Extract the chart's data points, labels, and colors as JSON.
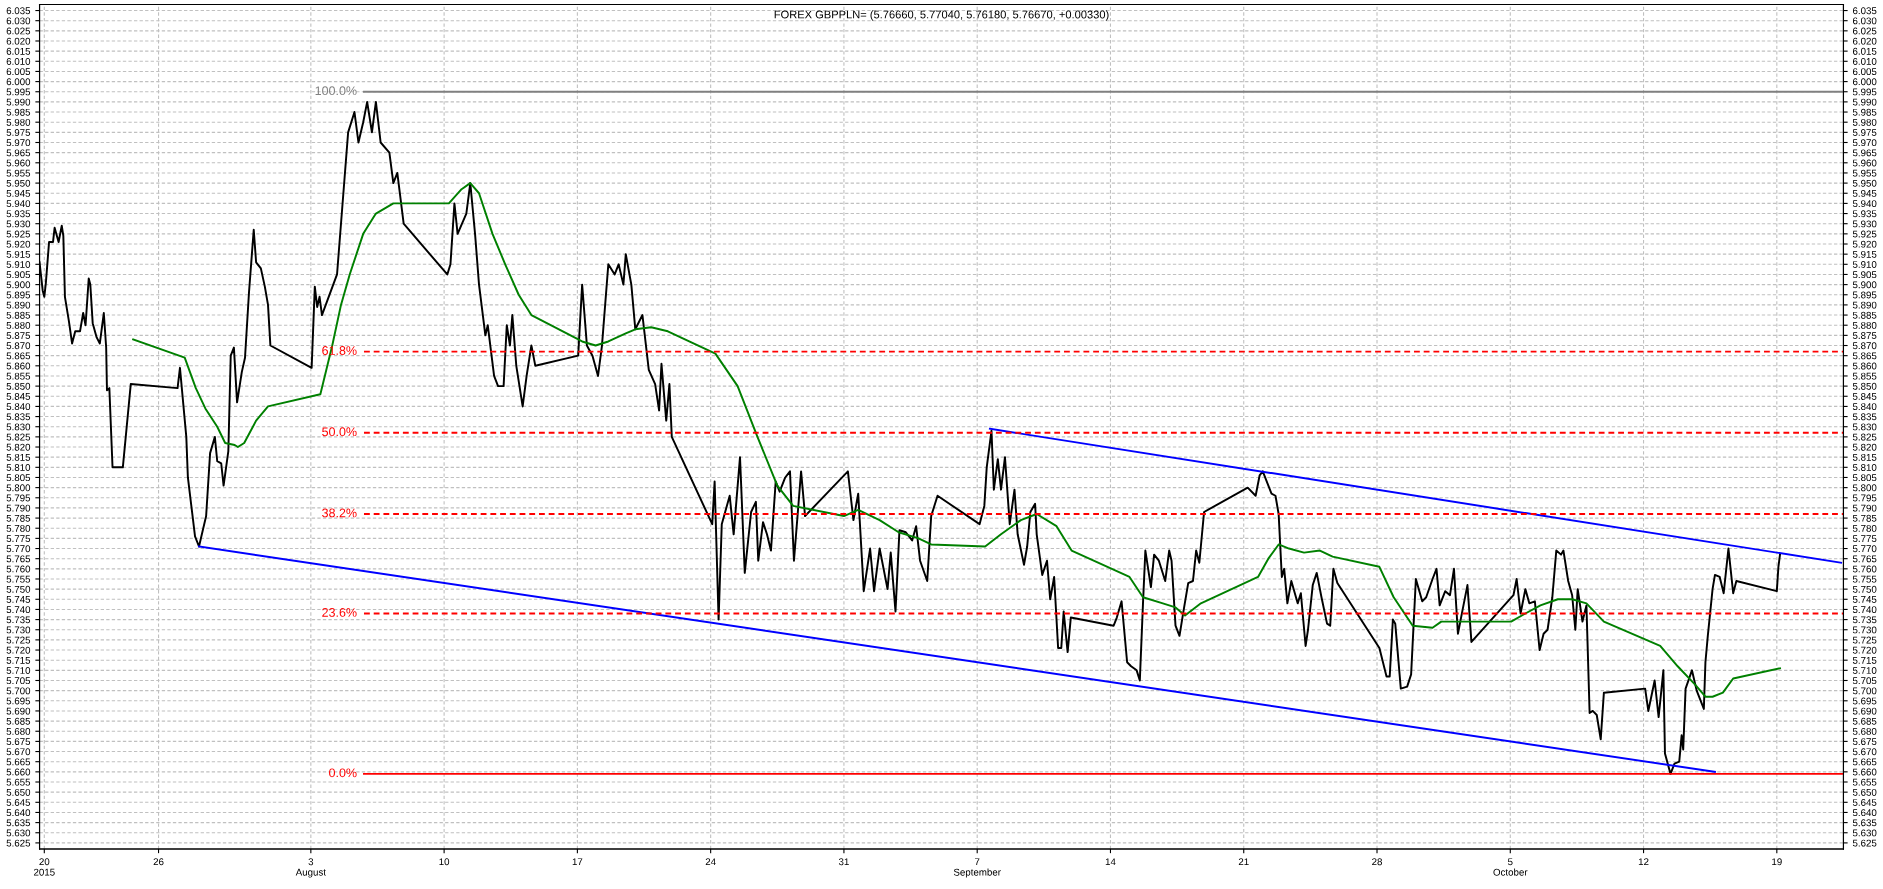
{
  "chart_data": {
    "type": "line",
    "title": "FOREX GBPPLN= (5.76660, 5.77040, 5.76180, 5.76670, +0.00330)",
    "xlim": [
      "2015-07-19T18:00",
      "2015-10-22T12:00"
    ],
    "ylim": [
      5.622,
      6.038
    ],
    "y2lim": [
      5.622,
      6.038
    ],
    "grid": true,
    "line_style": "solid",
    "marker": "none",
    "xticks": [
      {
        "value": "2015-07-20",
        "label": "20\n2015"
      },
      {
        "value": "2015-07-26",
        "label": "26"
      },
      {
        "value": "2015-08-03",
        "label": "3\nAugust"
      },
      {
        "value": "2015-08-10",
        "label": "10"
      },
      {
        "value": "2015-08-17",
        "label": "17"
      },
      {
        "value": "2015-08-24",
        "label": "24"
      },
      {
        "value": "2015-08-31",
        "label": "31"
      },
      {
        "value": "2015-09-07",
        "label": "7\nSeptember"
      },
      {
        "value": "2015-09-14",
        "label": "14"
      },
      {
        "value": "2015-09-21",
        "label": "21"
      },
      {
        "value": "2015-09-28",
        "label": "28"
      },
      {
        "value": "2015-10-05",
        "label": "5\nOctober"
      },
      {
        "value": "2015-10-12",
        "label": "12"
      },
      {
        "value": "2015-10-19",
        "label": "19"
      }
    ],
    "yticks": [
      5.625,
      {
        "value": 5.63,
        "label": "5.630"
      },
      5.635,
      {
        "value": 5.64,
        "label": "5.640"
      },
      5.645,
      {
        "value": 5.65,
        "label": "5.650"
      },
      5.655,
      {
        "value": 5.66,
        "label": "5.660"
      },
      5.665,
      {
        "value": 5.67,
        "label": "5.670"
      },
      5.675,
      {
        "value": 5.68,
        "label": "5.680"
      },
      5.685,
      {
        "value": 5.69,
        "label": "5.690"
      },
      5.695,
      {
        "value": 5.7,
        "label": "5.700"
      },
      5.705,
      {
        "value": 5.71,
        "label": "5.710"
      },
      5.715,
      {
        "value": 5.72,
        "label": "5.720"
      },
      5.725,
      {
        "value": 5.73,
        "label": "5.730"
      },
      5.735,
      {
        "value": 5.74,
        "label": "5.740"
      },
      5.745,
      {
        "value": 5.75,
        "label": "5.750"
      },
      5.755,
      {
        "value": 5.76,
        "label": "5.760"
      },
      5.765,
      {
        "value": 5.77,
        "label": "5.770"
      },
      5.775,
      {
        "value": 5.78,
        "label": "5.780"
      },
      5.785,
      {
        "value": 5.79,
        "label": "5.790"
      },
      5.795,
      {
        "value": 5.8,
        "label": "5.800"
      },
      5.805,
      {
        "value": 5.81,
        "label": "5.810"
      },
      5.815,
      {
        "value": 5.82,
        "label": "5.820"
      },
      5.825,
      {
        "value": 5.83,
        "label": "5.830"
      },
      5.835,
      {
        "value": 5.84,
        "label": "5.840"
      },
      5.845,
      {
        "value": 5.85,
        "label": "5.850"
      },
      5.855,
      {
        "value": 5.86,
        "label": "5.860"
      },
      5.865,
      {
        "value": 5.87,
        "label": "5.870"
      },
      5.875,
      {
        "value": 5.88,
        "label": "5.880"
      },
      5.885,
      {
        "value": 5.89,
        "label": "5.890"
      },
      5.895,
      {
        "value": 5.9,
        "label": "5.900"
      },
      5.905,
      {
        "value": 5.91,
        "label": "5.910"
      },
      5.915,
      {
        "value": 5.92,
        "label": "5.920"
      },
      5.925,
      {
        "value": 5.93,
        "label": "5.930"
      },
      5.935,
      {
        "value": 5.94,
        "label": "5.940"
      },
      5.945,
      {
        "value": 5.95,
        "label": "5.950"
      },
      5.955,
      {
        "value": 5.96,
        "label": "5.960"
      },
      5.965,
      {
        "value": 5.97,
        "label": "5.970"
      },
      5.975,
      {
        "value": 5.98,
        "label": "5.980"
      },
      5.985,
      {
        "value": 5.99,
        "label": "5.990"
      },
      5.995,
      {
        "value": 6.0,
        "label": "6.000"
      },
      6.005,
      {
        "value": 6.01,
        "label": "6.010"
      },
      6.015,
      {
        "value": 6.02,
        "label": "6.020"
      },
      6.025,
      {
        "value": 6.03,
        "label": "6.030"
      },
      6.035
    ],
    "y2ticks": [
      5.625,
      {
        "value": 5.63,
        "label": "5.630"
      },
      5.635,
      {
        "value": 5.64,
        "label": "5.640"
      },
      5.645,
      {
        "value": 5.65,
        "label": "5.650"
      },
      5.655,
      {
        "value": 5.66,
        "label": "5.660"
      },
      5.665,
      {
        "value": 5.67,
        "label": "5.670"
      },
      5.675,
      {
        "value": 5.68,
        "label": "5.680"
      },
      5.685,
      {
        "value": 5.69,
        "label": "5.690"
      },
      5.695,
      {
        "value": 5.7,
        "label": "5.700"
      },
      5.705,
      {
        "value": 5.71,
        "label": "5.710"
      },
      5.715,
      {
        "value": 5.72,
        "label": "5.720"
      },
      5.725,
      {
        "value": 5.73,
        "label": "5.730"
      },
      5.735,
      {
        "value": 5.74,
        "label": "5.740"
      },
      5.745,
      {
        "value": 5.75,
        "label": "5.750"
      },
      5.755,
      {
        "value": 5.76,
        "label": "5.760"
      },
      5.765,
      {
        "value": 5.77,
        "label": "5.770"
      },
      5.775,
      {
        "value": 5.78,
        "label": "5.780"
      },
      5.785,
      {
        "value": 5.79,
        "label": "5.790"
      },
      5.795,
      {
        "value": 5.8,
        "label": "5.800"
      },
      5.805,
      {
        "value": 5.81,
        "label": "5.810"
      },
      5.815,
      {
        "value": 5.82,
        "label": "5.820"
      },
      5.825,
      {
        "value": 5.83,
        "label": "5.830"
      },
      5.835,
      {
        "value": 5.84,
        "label": "5.840"
      },
      5.845,
      {
        "value": 5.85,
        "label": "5.850"
      },
      5.855,
      {
        "value": 5.86,
        "label": "5.860"
      },
      5.865,
      {
        "value": 5.87,
        "label": "5.870"
      },
      5.875,
      {
        "value": 5.88,
        "label": "5.880"
      },
      5.885,
      {
        "value": 5.89,
        "label": "5.890"
      },
      5.895,
      {
        "value": 5.9,
        "label": "5.900"
      },
      5.905,
      {
        "value": 5.91,
        "label": "5.910"
      },
      5.915,
      {
        "value": 5.92,
        "label": "5.920"
      },
      5.925,
      {
        "value": 5.93,
        "label": "5.930"
      },
      5.935,
      {
        "value": 5.94,
        "label": "5.940"
      },
      5.945,
      {
        "value": 5.95,
        "label": "5.950"
      },
      5.955,
      {
        "value": 5.96,
        "label": "5.960"
      },
      5.965,
      {
        "value": 5.97,
        "label": "5.970"
      },
      5.975,
      {
        "value": 5.98,
        "label": "5.980"
      },
      5.985,
      {
        "value": 5.99,
        "label": "5.990"
      },
      5.995,
      {
        "value": 6.0,
        "label": "6.000"
      },
      6.005,
      {
        "value": 6.01,
        "label": "6.010"
      },
      6.015,
      {
        "value": 6.02,
        "label": "6.020"
      },
      6.025,
      {
        "value": 6.03,
        "label": "6.030"
      },
      6.035
    ],
    "series": [
      {
        "color": "#000000",
        "x": [
          "2015-07-19T18:00",
          "2015-07-19T22:00",
          "2015-07-20T00:00",
          "2015-07-20T02:00",
          "2015-07-20T06:00",
          "2015-07-20T11:00",
          "2015-07-20T13:00",
          "2015-07-20T18:00",
          "2015-07-20T22:00",
          "2015-07-21T00:00",
          "2015-07-21T02:00",
          "2015-07-21T07:00",
          "2015-07-21T11:00",
          "2015-07-21T15:00",
          "2015-07-21T21:00",
          "2015-07-22T01:00",
          "2015-07-22T04:00",
          "2015-07-22T08:00",
          "2015-07-22T10:00",
          "2015-07-22T13:00",
          "2015-07-22T18:00",
          "2015-07-22T22:00",
          "2015-07-23T03:00",
          "2015-07-23T06:00",
          "2015-07-23T07:00",
          "2015-07-23T10:00",
          "2015-07-23T14:00",
          "2015-07-24T03:00",
          "2015-07-24T13:00",
          "2015-07-27T00:00",
          "2015-07-27T03:00",
          "2015-07-27T11:00",
          "2015-07-27T13:00",
          "2015-07-27T22:00",
          "2015-07-28T03:00",
          "2015-07-28T12:00",
          "2015-07-28T17:00",
          "2015-07-28T23:00",
          "2015-07-29T02:00",
          "2015-07-29T07:00",
          "2015-07-29T10:00",
          "2015-07-29T16:00",
          "2015-07-29T19:00",
          "2015-07-29T23:00",
          "2015-07-30T03:00",
          "2015-07-30T09:00",
          "2015-07-30T13:00",
          "2015-07-30T18:00",
          "2015-07-31T00:00",
          "2015-07-31T03:00",
          "2015-07-31T09:00",
          "2015-07-31T14:00",
          "2015-07-31T18:00",
          "2015-07-31T21:00",
          "2015-08-03T01:00",
          "2015-08-03T05:00",
          "2015-08-03T08:00",
          "2015-08-03T11:00",
          "2015-08-03T14:00",
          "2015-08-04T09:00",
          "2015-08-04T14:00",
          "2015-08-04T23:00",
          "2015-08-05T07:00",
          "2015-08-05T12:00",
          "2015-08-05T18:00",
          "2015-08-05T23:00",
          "2015-08-06T05:00",
          "2015-08-06T10:00",
          "2015-08-06T16:00",
          "2015-08-07T03:00",
          "2015-08-07T08:00",
          "2015-08-07T13:00",
          "2015-08-07T21:00",
          "2015-08-10T04:00",
          "2015-08-10T08:00",
          "2015-08-10T13:00",
          "2015-08-10T17:00",
          "2015-08-11T04:00",
          "2015-08-11T09:00",
          "2015-08-11T15:00",
          "2015-08-11T20:00",
          "2015-08-12T04:00",
          "2015-08-12T07:00",
          "2015-08-12T15:00",
          "2015-08-12T20:00",
          "2015-08-13T03:00",
          "2015-08-13T07:00",
          "2015-08-13T11:00",
          "2015-08-13T14:00",
          "2015-08-13T19:00",
          "2015-08-14T03:00",
          "2015-08-14T08:00",
          "2015-08-14T14:00",
          "2015-08-14T19:00",
          "2015-08-17T01:00",
          "2015-08-17T06:00",
          "2015-08-17T12:00",
          "2015-08-17T19:00",
          "2015-08-18T02:00",
          "2015-08-18T07:00",
          "2015-08-18T15:00",
          "2015-08-18T23:00",
          "2015-08-19T04:00",
          "2015-08-19T10:00",
          "2015-08-19T13:00",
          "2015-08-19T20:00",
          "2015-08-20T01:00",
          "2015-08-20T10:00",
          "2015-08-20T18:00",
          "2015-08-21T02:00",
          "2015-08-21T07:00",
          "2015-08-21T10:00",
          "2015-08-21T16:00",
          "2015-08-21T20:00",
          "2015-08-21T23:00",
          "2015-08-24T02:00",
          "2015-08-24T05:00",
          "2015-08-24T10:00",
          "2015-08-24T14:00",
          "2015-08-25T00:00",
          "2015-08-25T05:00",
          "2015-08-25T13:00",
          "2015-08-25T19:00",
          "2015-08-26T03:00",
          "2015-08-26T09:00",
          "2015-08-26T12:00",
          "2015-08-26T18:00",
          "2015-08-26T23:00",
          "2015-08-27T04:00",
          "2015-08-27T10:00",
          "2015-08-27T15:00",
          "2015-08-27T22:00",
          "2015-08-28T04:00",
          "2015-08-28T09:00",
          "2015-08-28T18:00",
          "2015-08-28T23:00",
          "2015-08-31T05:00",
          "2015-08-31T12:00",
          "2015-08-31T18:00",
          "2015-09-01T01:00",
          "2015-09-01T09:00",
          "2015-09-01T14:00",
          "2015-09-01T21:00",
          "2015-09-02T07:00",
          "2015-09-02T11:00",
          "2015-09-02T17:00",
          "2015-09-02T22:00",
          "2015-09-03T06:00",
          "2015-09-03T14:00",
          "2015-09-03T19:00",
          "2015-09-04T00:00",
          "2015-09-04T09:00",
          "2015-09-04T14:00",
          "2015-09-04T22:00",
          "2015-09-07T03:00",
          "2015-09-07T09:00",
          "2015-09-07T12:00",
          "2015-09-07T18:00",
          "2015-09-07T21:00",
          "2015-09-08T02:00",
          "2015-09-08T06:00",
          "2015-09-08T11:00",
          "2015-09-08T17:00",
          "2015-09-08T23:00",
          "2015-09-09T03:00",
          "2015-09-09T11:00",
          "2015-09-09T15:00",
          "2015-09-09T19:00",
          "2015-09-10T01:00",
          "2015-09-10T03:00",
          "2015-09-10T10:00",
          "2015-09-10T16:00",
          "2015-09-10T20:00",
          "2015-09-11T01:00",
          "2015-09-11T06:00",
          "2015-09-11T10:00",
          "2015-09-11T13:00",
          "2015-09-11T18:00",
          "2015-09-11T22:00",
          "2015-09-14T04:00",
          "2015-09-14T08:00",
          "2015-09-14T14:00",
          "2015-09-14T21:00",
          "2015-09-15T02:00",
          "2015-09-15T09:00",
          "2015-09-15T13:00",
          "2015-09-15T17:00",
          "2015-09-15T20:00",
          "2015-09-16T03:00",
          "2015-09-16T07:00",
          "2015-09-16T13:00",
          "2015-09-16T21:00",
          "2015-09-17T02:00",
          "2015-09-17T05:00",
          "2015-09-17T10:00",
          "2015-09-17T15:00",
          "2015-09-17T20:00",
          "2015-09-18T02:00",
          "2015-09-18T08:00",
          "2015-09-18T12:00",
          "2015-09-18T16:00",
          "2015-09-18T22:00",
          "2015-09-21T05:00",
          "2015-09-21T15:00",
          "2015-09-21T20:00",
          "2015-09-22T00:00",
          "2015-09-22T11:00",
          "2015-09-22T16:00",
          "2015-09-22T20:00",
          "2015-09-23T00:00",
          "2015-09-23T03:00",
          "2015-09-23T07:00",
          "2015-09-23T12:00",
          "2015-09-23T20:00",
          "2015-09-24T00:00",
          "2015-09-24T06:00",
          "2015-09-24T09:00",
          "2015-09-24T15:00",
          "2015-09-24T20:00",
          "2015-09-25T02:00",
          "2015-09-25T09:00",
          "2015-09-25T13:00",
          "2015-09-25T17:00",
          "2015-09-25T22:00",
          "2015-09-28T03:00",
          "2015-09-28T12:00",
          "2015-09-28T16:00",
          "2015-09-28T20:00",
          "2015-09-28T23:00",
          "2015-09-29T06:00",
          "2015-09-29T14:00",
          "2015-09-29T19:00",
          "2015-09-30T01:00",
          "2015-09-30T09:00",
          "2015-09-30T14:00",
          "2015-09-30T22:00",
          "2015-10-01T03:00",
          "2015-10-01T07:00",
          "2015-10-01T14:00",
          "2015-10-01T20:00",
          "2015-10-02T01:00",
          "2015-10-02T06:00",
          "2015-10-02T12:00",
          "2015-10-02T18:00",
          "2015-10-02T23:00",
          "2015-10-05T04:00",
          "2015-10-05T08:00",
          "2015-10-05T13:00",
          "2015-10-05T19:00",
          "2015-10-06T00:00",
          "2015-10-06T07:00",
          "2015-10-06T13:00",
          "2015-10-06T18:00",
          "2015-10-06T23:00",
          "2015-10-07T05:00",
          "2015-10-07T10:00",
          "2015-10-07T16:00",
          "2015-10-07T19:00",
          "2015-10-08T01:00",
          "2015-10-08T06:00",
          "2015-10-08T10:00",
          "2015-10-08T13:00",
          "2015-10-08T19:00",
          "2015-10-09T00:00",
          "2015-10-09T04:00",
          "2015-10-09T08:00",
          "2015-10-09T13:00",
          "2015-10-09T18:00",
          "2015-10-09T22:00",
          "2015-10-12T02:00",
          "2015-10-12T06:00",
          "2015-10-12T14:00",
          "2015-10-12T19:00",
          "2015-10-13T01:00",
          "2015-10-13T03:00",
          "2015-10-13T10:00",
          "2015-10-13T15:00",
          "2015-10-13T21:00",
          "2015-10-14T00:00",
          "2015-10-14T02:00",
          "2015-10-14T05:00",
          "2015-10-14T13:00",
          "2015-10-14T19:00",
          "2015-10-15T04:00",
          "2015-10-15T06:00",
          "2015-10-15T09:00",
          "2015-10-15T15:00",
          "2015-10-15T18:00",
          "2015-10-16T00:00",
          "2015-10-16T05:00",
          "2015-10-16T11:00",
          "2015-10-16T17:00",
          "2015-10-16T21:00",
          "2015-10-19T00:00",
          "2015-10-19T02:00",
          "2015-10-19T04:00"
        ],
        "values": [
          5.911,
          5.897,
          5.894,
          5.901,
          5.921,
          5.921,
          5.928,
          5.921,
          5.929,
          5.924,
          5.894,
          5.882,
          5.871,
          5.877,
          5.877,
          5.886,
          5.88,
          5.903,
          5.9,
          5.881,
          5.874,
          5.871,
          5.886,
          5.869,
          5.848,
          5.849,
          5.81,
          5.81,
          5.851,
          5.849,
          5.859,
          5.825,
          5.805,
          5.776,
          5.771,
          5.786,
          5.817,
          5.825,
          5.813,
          5.812,
          5.801,
          5.818,
          5.865,
          5.869,
          5.842,
          5.857,
          5.864,
          5.896,
          5.927,
          5.911,
          5.908,
          5.899,
          5.89,
          5.87,
          5.859,
          5.899,
          5.889,
          5.894,
          5.885,
          5.905,
          5.93,
          5.975,
          5.985,
          5.97,
          5.98,
          5.99,
          5.975,
          5.99,
          5.97,
          5.965,
          5.95,
          5.955,
          5.93,
          5.905,
          5.91,
          5.94,
          5.925,
          5.935,
          5.95,
          5.925,
          5.9,
          5.875,
          5.88,
          5.855,
          5.85,
          5.85,
          5.88,
          5.87,
          5.885,
          5.86,
          5.84,
          5.855,
          5.87,
          5.86,
          5.865,
          5.9,
          5.87,
          5.865,
          5.855,
          5.87,
          5.91,
          5.905,
          5.91,
          5.9,
          5.915,
          5.9,
          5.878,
          5.885,
          5.858,
          5.851,
          5.838,
          5.861,
          5.833,
          5.851,
          5.825,
          5.782,
          5.803,
          5.735,
          5.782,
          5.796,
          5.777,
          5.815,
          5.758,
          5.788,
          5.793,
          5.764,
          5.783,
          5.777,
          5.769,
          5.803,
          5.798,
          5.805,
          5.808,
          5.764,
          5.808,
          5.786,
          5.808,
          5.784,
          5.797,
          5.749,
          5.77,
          5.749,
          5.77,
          5.75,
          5.768,
          5.739,
          5.779,
          5.778,
          5.774,
          5.781,
          5.764,
          5.754,
          5.786,
          5.796,
          5.782,
          5.791,
          5.81,
          5.828,
          5.799,
          5.814,
          5.799,
          5.815,
          5.782,
          5.799,
          5.777,
          5.762,
          5.771,
          5.788,
          5.792,
          5.777,
          5.757,
          5.764,
          5.745,
          5.756,
          5.721,
          5.721,
          5.739,
          5.719,
          5.736,
          5.732,
          5.736,
          5.744,
          5.714,
          5.712,
          5.71,
          5.705,
          5.743,
          5.769,
          5.751,
          5.767,
          5.764,
          5.754,
          5.769,
          5.764,
          5.732,
          5.727,
          5.739,
          5.753,
          5.754,
          5.769,
          5.763,
          5.788,
          5.8,
          5.796,
          5.806,
          5.808,
          5.797,
          5.796,
          5.787,
          5.756,
          5.76,
          5.743,
          5.754,
          5.743,
          5.748,
          5.722,
          5.73,
          5.752,
          5.758,
          5.746,
          5.733,
          5.732,
          5.76,
          5.753,
          5.721,
          5.707,
          5.707,
          5.735,
          5.733,
          5.701,
          5.702,
          5.708,
          5.755,
          5.744,
          5.746,
          5.755,
          5.76,
          5.742,
          5.749,
          5.747,
          5.76,
          5.728,
          5.74,
          5.752,
          5.724,
          5.747,
          5.755,
          5.738,
          5.75,
          5.743,
          5.744,
          5.72,
          5.728,
          5.73,
          5.746,
          5.769,
          5.767,
          5.769,
          5.754,
          5.747,
          5.73,
          5.75,
          5.734,
          5.742,
          5.689,
          5.69,
          5.688,
          5.676,
          5.699,
          5.701,
          5.69,
          5.705,
          5.687,
          5.71,
          5.669,
          5.659,
          5.664,
          5.665,
          5.678,
          5.671,
          5.701,
          5.71,
          5.7,
          5.691,
          5.714,
          5.727,
          5.75,
          5.757,
          5.756,
          5.748,
          5.77,
          5.748,
          5.754,
          5.749,
          5.761,
          5.767
        ]
      },
      {
        "color": "#008000",
        "x": [
          "2015-07-24T16:00",
          "2015-07-27T09:00",
          "2015-07-27T23:00",
          "2015-07-28T11:00",
          "2015-07-29T02:00",
          "2015-07-29T12:00",
          "2015-07-30T00:00",
          "2015-07-30T04:00",
          "2015-07-30T12:00",
          "2015-07-31T03:00",
          "2015-07-31T18:00",
          "2015-08-03T12:00",
          "2015-08-04T03:00",
          "2015-08-04T14:00",
          "2015-08-05T01:00",
          "2015-08-05T18:00",
          "2015-08-06T10:00",
          "2015-08-07T08:00",
          "2015-08-10T06:00",
          "2015-08-10T22:00",
          "2015-08-11T09:00",
          "2015-08-11T20:00",
          "2015-08-12T13:00",
          "2015-08-13T05:00",
          "2015-08-13T22:00",
          "2015-08-14T14:00",
          "2015-08-17T06:00",
          "2015-08-17T23:00",
          "2015-08-18T15:00",
          "2015-08-19T13:00",
          "2015-08-20T01:00",
          "2015-08-20T21:00",
          "2015-08-21T18:00",
          "2015-08-24T06:00",
          "2015-08-25T10:00",
          "2015-08-26T11:00",
          "2015-08-27T12:00",
          "2015-08-28T08:00",
          "2015-08-31T00:00",
          "2015-08-31T18:00",
          "2015-09-01T21:00",
          "2015-09-02T21:00",
          "2015-09-03T22:00",
          "2015-09-04T14:00",
          "2015-09-07T10:00",
          "2015-09-08T06:00",
          "2015-09-09T07:00",
          "2015-09-10T03:00",
          "2015-09-11T04:00",
          "2015-09-11T23:00",
          "2015-09-15T00:00",
          "2015-09-15T17:00",
          "2015-09-16T18:00",
          "2015-09-17T10:00",
          "2015-09-17T22:00",
          "2015-09-18T18:00",
          "2015-09-21T18:00",
          "2015-09-22T07:00",
          "2015-09-22T20:00",
          "2015-09-23T09:00",
          "2015-09-24T04:00",
          "2015-09-25T00:00",
          "2015-09-25T16:00",
          "2015-09-28T03:00",
          "2015-09-28T21:00",
          "2015-09-29T21:00",
          "2015-09-30T22:00",
          "2015-10-01T09:00",
          "2015-10-02T06:00",
          "2015-10-05T01:00",
          "2015-10-05T19:00",
          "2015-10-06T14:00",
          "2015-10-07T12:00",
          "2015-10-08T06:00",
          "2015-10-09T00:00",
          "2015-10-09T22:00",
          "2015-10-12T21:00",
          "2015-10-13T19:00",
          "2015-10-14T17:00",
          "2015-10-15T06:00",
          "2015-10-15T15:00",
          "2015-10-16T04:00",
          "2015-10-16T17:00",
          "2015-10-19T04:00"
        ],
        "values": [
          5.873,
          5.864,
          5.849,
          5.839,
          5.83,
          5.822,
          5.821,
          5.82,
          5.822,
          5.833,
          5.84,
          5.846,
          5.87,
          5.89,
          5.905,
          5.925,
          5.935,
          5.94,
          5.94,
          5.947,
          5.95,
          5.945,
          5.925,
          5.91,
          5.895,
          5.885,
          5.872,
          5.87,
          5.872,
          5.876,
          5.878,
          5.879,
          5.877,
          5.866,
          5.85,
          5.825,
          5.801,
          5.791,
          5.786,
          5.789,
          5.784,
          5.778,
          5.775,
          5.772,
          5.771,
          5.777,
          5.784,
          5.787,
          5.781,
          5.769,
          5.756,
          5.746,
          5.743,
          5.741,
          5.737,
          5.743,
          5.756,
          5.765,
          5.772,
          5.77,
          5.768,
          5.769,
          5.766,
          5.761,
          5.746,
          5.732,
          5.731,
          5.734,
          5.734,
          5.734,
          5.738,
          5.742,
          5.745,
          5.745,
          5.743,
          5.734,
          5.722,
          5.712,
          5.703,
          5.697,
          5.697,
          5.699,
          5.706,
          5.711
        ]
      },
      {
        "color": "#0000ff",
        "x": [
          "2015-07-28T03:00",
          "2015-10-15T18:00"
        ],
        "values": [
          5.771,
          5.66
        ]
      },
      {
        "color": "#0000ff",
        "x": [
          "2015-09-07T16:00",
          "2015-10-22T09:00"
        ],
        "values": [
          5.829,
          5.763
        ]
      },
      {
        "name": "100.0%",
        "color": "#808080",
        "line_style": "solid",
        "x": [
          "2015-08-05T19:00",
          "2015-10-22T12:00"
        ],
        "values": [
          5.995,
          5.995
        ]
      },
      {
        "name": "61.8%",
        "color": "#ff0000",
        "line_style": "dashed",
        "x": [
          "2015-08-05T19:00",
          "2015-10-22T12:00"
        ],
        "values": [
          5.867,
          5.867
        ]
      },
      {
        "name": "50.0%",
        "color": "#ff0000",
        "line_style": "dashed",
        "x": [
          "2015-08-05T19:00",
          "2015-10-22T12:00"
        ],
        "values": [
          5.827,
          5.827
        ]
      },
      {
        "name": "38.2%",
        "color": "#ff0000",
        "line_style": "dashed",
        "x": [
          "2015-08-05T19:00",
          "2015-10-22T12:00"
        ],
        "values": [
          5.787,
          5.787
        ]
      },
      {
        "name": "23.6%",
        "color": "#ff0000",
        "line_style": "dashed",
        "x": [
          "2015-08-05T19:00",
          "2015-10-22T12:00"
        ],
        "values": [
          5.738,
          5.738
        ]
      },
      {
        "name": "0.0%",
        "color": "#ff0000",
        "line_style": "solid",
        "x": [
          "2015-08-05T19:00",
          "2015-10-22T12:00"
        ],
        "values": [
          5.659,
          5.659
        ]
      }
    ]
  }
}
